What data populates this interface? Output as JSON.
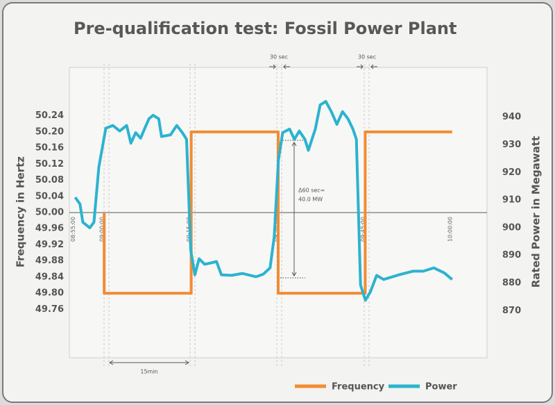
{
  "chart_data": {
    "type": "line",
    "title": "Pre-qualification test: Fossil Power Plant",
    "y_label": "Frequency in Hertz",
    "y2_label": "Rated Power in Megawatt",
    "xlim": [
      "08:54:00",
      "10:06:00"
    ],
    "xticks": [
      "08:55:00",
      "09:00:00",
      "09:15:00",
      "09:30:00",
      "09:45:00",
      "10:00:00"
    ],
    "ylim": [
      49.64,
      50.36
    ],
    "yticks": [
      50.24,
      {
        "value": 50.2,
        "label": "50.20"
      },
      50.16,
      50.12,
      50.08,
      50.04,
      {
        "value": 50,
        "label": "50.00"
      },
      49.96,
      49.92,
      49.88,
      49.84,
      {
        "value": 49.8,
        "label": "49.80"
      },
      49.76
    ],
    "y2lim": [
      853,
      958
    ],
    "y2ticks": [
      940,
      930,
      920,
      910,
      900,
      890,
      880,
      870
    ],
    "series": [
      {
        "name": "Frequency",
        "color": "#f28c33",
        "x": [
          "09:00:00",
          "09:00:00",
          "09:15:00",
          "09:15:00",
          "09:30:00",
          "09:30:00",
          "09:45:00",
          "09:45:00",
          "10:00:00"
        ],
        "values": [
          50,
          49.8,
          49.8,
          50.2,
          50.2,
          49.8,
          49.8,
          50.2,
          50.2
        ]
      },
      {
        "name": "Power",
        "color": "#2bb3cf",
        "axis": "y2",
        "x": [
          "08:55:00",
          "08:55:50",
          "08:56:19",
          "08:57:31",
          "08:58:14",
          "08:59:05",
          "09:00:17",
          "09:01:29",
          "09:02:41",
          "09:03:53",
          "09:04:36",
          "09:05:26",
          "09:06:17",
          "09:07:00",
          "09:07:43",
          "09:08:26",
          "09:09:24",
          "09:09:53",
          "09:11:26",
          "09:12:31",
          "09:13:29",
          "09:14:12",
          "09:14:55",
          "09:15:38",
          "09:16:22",
          "09:17:19",
          "09:18:24",
          "09:19:22",
          "09:20:12",
          "09:22:00",
          "09:23:48",
          "09:26:12",
          "09:27:24",
          "09:28:36",
          "09:29:19",
          "09:30:02",
          "09:30:46",
          "09:31:58",
          "09:32:48",
          "09:33:38",
          "09:34:36",
          "09:35:12",
          "09:36:24",
          "09:37:14",
          "09:38:12",
          "09:39:10",
          "09:40:07",
          "09:41:05",
          "09:42:02",
          "09:42:53",
          "09:43:29",
          "09:44:12",
          "09:45:02",
          "09:45:53",
          "09:46:58",
          "09:48:10",
          "09:50:49",
          "09:53:13",
          "09:55:01",
          "09:56:49",
          "09:58:37",
          "10:00:00"
        ],
        "values": [
          911,
          908.6,
          902,
          900,
          902,
          922,
          936,
          937,
          935,
          937,
          930.6,
          934.4,
          932.4,
          936,
          939.4,
          940.7,
          939.4,
          933,
          933.6,
          937,
          934.4,
          932,
          892,
          883,
          888.8,
          886.8,
          887.3,
          887.8,
          883,
          882.8,
          883.5,
          882.3,
          883.2,
          885.5,
          896.8,
          924.4,
          934.4,
          935.7,
          932,
          935,
          932,
          928,
          935.7,
          944.4,
          945.7,
          942,
          937.4,
          942,
          939.4,
          935.7,
          932,
          879.3,
          873.8,
          876.8,
          882.8,
          881.3,
          883,
          884.3,
          884.3,
          885.5,
          883.7,
          881.3
        ]
      }
    ],
    "annotations": [
      "30 sec",
      "30 sec",
      "15min",
      "Δ60 sec=",
      "40.0 MW"
    ]
  }
}
